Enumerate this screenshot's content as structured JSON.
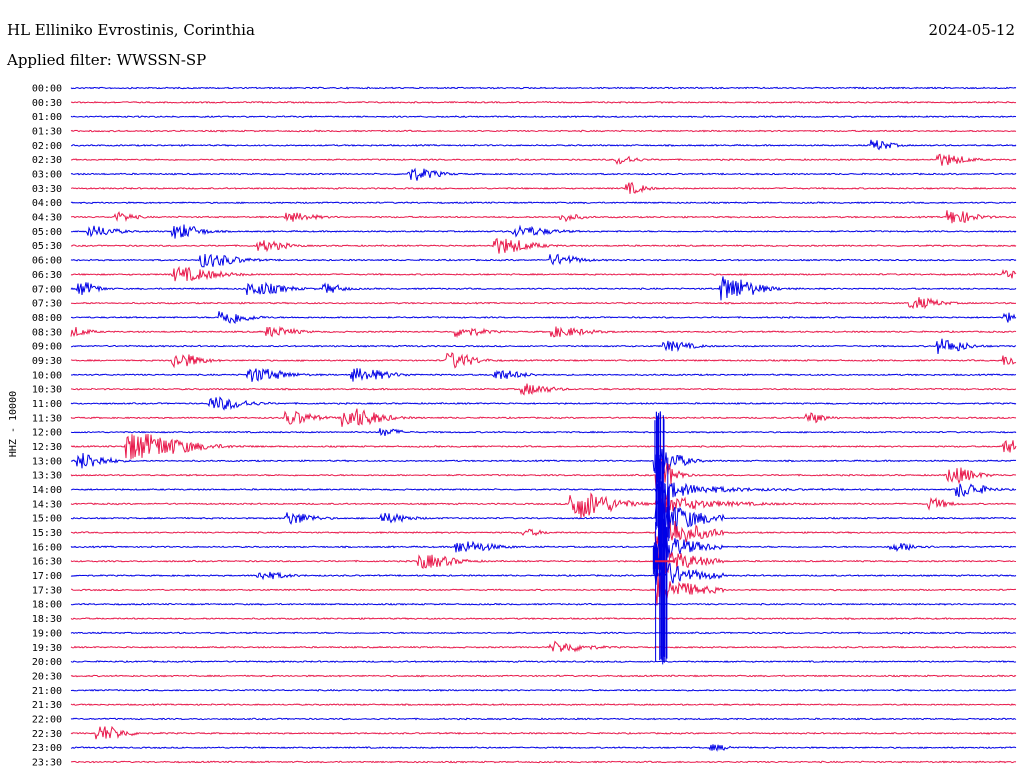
{
  "header": {
    "station": "HL Elliniko Evrostinis, Corinthia",
    "filter": "Applied filter: WWSSN-SP",
    "date": "2024-05-12"
  },
  "colors": {
    "trace_a": "#0000e6",
    "trace_b": "#e8194b",
    "text": "#000000",
    "background": "#ffffff"
  },
  "chart_data": {
    "type": "line",
    "title": "HL Elliniko Evrostinis, Corinthia",
    "subtitle": "Applied filter: WWSSN-SP",
    "ylabel": "HHZ - 10000",
    "xlabel": "",
    "grid": false,
    "row_times": [
      "00:00",
      "00:30",
      "01:00",
      "01:30",
      "02:00",
      "02:30",
      "03:00",
      "03:30",
      "04:00",
      "04:30",
      "05:00",
      "05:30",
      "06:00",
      "06:30",
      "07:00",
      "07:30",
      "08:00",
      "08:30",
      "09:00",
      "09:30",
      "10:00",
      "10:30",
      "11:00",
      "11:30",
      "12:00",
      "12:30",
      "13:00",
      "13:30",
      "14:00",
      "14:30",
      "15:00",
      "15:30",
      "16:00",
      "16:30",
      "17:00",
      "17:30",
      "18:00",
      "18:30",
      "19:00",
      "19:30",
      "20:00",
      "20:30",
      "21:00",
      "21:30",
      "22:00",
      "22:30",
      "23:00",
      "23:30"
    ],
    "row_colors": [
      "blue",
      "red"
    ],
    "events": [
      {
        "row": 4,
        "t": 0.85,
        "amp": 1.0,
        "dur": 0.02
      },
      {
        "row": 5,
        "t": 0.92,
        "amp": 1.1,
        "dur": 0.03
      },
      {
        "row": 5,
        "t": 0.58,
        "amp": 0.8,
        "dur": 0.02
      },
      {
        "row": 6,
        "t": 0.36,
        "amp": 1.2,
        "dur": 0.03
      },
      {
        "row": 7,
        "t": 0.59,
        "amp": 1.0,
        "dur": 0.02
      },
      {
        "row": 9,
        "t": 0.05,
        "amp": 0.8,
        "dur": 0.02
      },
      {
        "row": 9,
        "t": 0.23,
        "amp": 0.8,
        "dur": 0.03
      },
      {
        "row": 9,
        "t": 0.52,
        "amp": 0.7,
        "dur": 0.02
      },
      {
        "row": 9,
        "t": 0.93,
        "amp": 1.3,
        "dur": 0.03
      },
      {
        "row": 10,
        "t": 0.02,
        "amp": 1.0,
        "dur": 0.03
      },
      {
        "row": 10,
        "t": 0.11,
        "amp": 1.4,
        "dur": 0.03
      },
      {
        "row": 10,
        "t": 0.47,
        "amp": 1.0,
        "dur": 0.04
      },
      {
        "row": 11,
        "t": 0.2,
        "amp": 1.0,
        "dur": 0.03
      },
      {
        "row": 11,
        "t": 0.45,
        "amp": 1.5,
        "dur": 0.04
      },
      {
        "row": 12,
        "t": 0.14,
        "amp": 1.3,
        "dur": 0.04
      },
      {
        "row": 12,
        "t": 0.51,
        "amp": 1.0,
        "dur": 0.03
      },
      {
        "row": 13,
        "t": 0.11,
        "amp": 1.3,
        "dur": 0.05
      },
      {
        "row": 13,
        "t": 0.99,
        "amp": 0.9,
        "dur": 0.02
      },
      {
        "row": 14,
        "t": 0.01,
        "amp": 1.3,
        "dur": 0.02
      },
      {
        "row": 14,
        "t": 0.19,
        "amp": 1.2,
        "dur": 0.04
      },
      {
        "row": 14,
        "t": 0.27,
        "amp": 0.9,
        "dur": 0.02
      },
      {
        "row": 14,
        "t": 0.69,
        "amp": 2.3,
        "dur": 0.04
      },
      {
        "row": 15,
        "t": 0.89,
        "amp": 1.1,
        "dur": 0.03
      },
      {
        "row": 16,
        "t": 0.16,
        "amp": 1.4,
        "dur": 0.03
      },
      {
        "row": 16,
        "t": 0.99,
        "amp": 1.0,
        "dur": 0.01
      },
      {
        "row": 17,
        "t": 0.0,
        "amp": 0.9,
        "dur": 0.02
      },
      {
        "row": 17,
        "t": 0.21,
        "amp": 0.9,
        "dur": 0.03
      },
      {
        "row": 17,
        "t": 0.41,
        "amp": 0.9,
        "dur": 0.03
      },
      {
        "row": 17,
        "t": 0.51,
        "amp": 0.9,
        "dur": 0.04
      },
      {
        "row": 18,
        "t": 0.63,
        "amp": 0.9,
        "dur": 0.03
      },
      {
        "row": 18,
        "t": 0.92,
        "amp": 1.4,
        "dur": 0.03
      },
      {
        "row": 19,
        "t": 0.11,
        "amp": 1.4,
        "dur": 0.03
      },
      {
        "row": 19,
        "t": 0.4,
        "amp": 1.5,
        "dur": 0.03
      },
      {
        "row": 19,
        "t": 0.99,
        "amp": 1.0,
        "dur": 0.02
      },
      {
        "row": 20,
        "t": 0.19,
        "amp": 1.3,
        "dur": 0.04
      },
      {
        "row": 20,
        "t": 0.3,
        "amp": 1.2,
        "dur": 0.04
      },
      {
        "row": 20,
        "t": 0.45,
        "amp": 0.9,
        "dur": 0.03
      },
      {
        "row": 21,
        "t": 0.48,
        "amp": 1.0,
        "dur": 0.03
      },
      {
        "row": 22,
        "t": 0.15,
        "amp": 1.2,
        "dur": 0.04
      },
      {
        "row": 23,
        "t": 0.23,
        "amp": 1.3,
        "dur": 0.03
      },
      {
        "row": 23,
        "t": 0.29,
        "amp": 2.0,
        "dur": 0.04
      },
      {
        "row": 23,
        "t": 0.78,
        "amp": 1.0,
        "dur": 0.02
      },
      {
        "row": 24,
        "t": 0.33,
        "amp": 0.7,
        "dur": 0.02
      },
      {
        "row": 25,
        "t": 0.06,
        "amp": 2.6,
        "dur": 0.07
      },
      {
        "row": 25,
        "t": 0.99,
        "amp": 1.2,
        "dur": 0.03
      },
      {
        "row": 26,
        "t": 0.01,
        "amp": 1.5,
        "dur": 0.03
      },
      {
        "row": 26,
        "t": 0.62,
        "amp": 2.4,
        "dur": 0.03
      },
      {
        "row": 27,
        "t": 0.93,
        "amp": 1.6,
        "dur": 0.03
      },
      {
        "row": 28,
        "t": 0.94,
        "amp": 1.4,
        "dur": 0.03
      },
      {
        "row": 29,
        "t": 0.53,
        "amp": 2.8,
        "dur": 0.05
      },
      {
        "row": 29,
        "t": 0.91,
        "amp": 1.0,
        "dur": 0.02
      },
      {
        "row": 30,
        "t": 0.23,
        "amp": 1.1,
        "dur": 0.03
      },
      {
        "row": 30,
        "t": 0.33,
        "amp": 0.9,
        "dur": 0.03
      },
      {
        "row": 31,
        "t": 0.48,
        "amp": 0.6,
        "dur": 0.02
      },
      {
        "row": 32,
        "t": 0.41,
        "amp": 1.1,
        "dur": 0.04
      },
      {
        "row": 32,
        "t": 0.87,
        "amp": 0.7,
        "dur": 0.03
      },
      {
        "row": 33,
        "t": 0.37,
        "amp": 1.3,
        "dur": 0.04
      },
      {
        "row": 34,
        "t": 0.2,
        "amp": 0.7,
        "dur": 0.03
      },
      {
        "row": 39,
        "t": 0.51,
        "amp": 1.0,
        "dur": 0.04
      },
      {
        "row": 45,
        "t": 0.03,
        "amp": 1.4,
        "dur": 0.03
      },
      {
        "row": 46,
        "t": 0.68,
        "amp": 0.5,
        "dur": 0.02
      }
    ],
    "main_event": {
      "start_row": 27,
      "t": 0.62,
      "amp": 11,
      "rows": 9
    }
  }
}
